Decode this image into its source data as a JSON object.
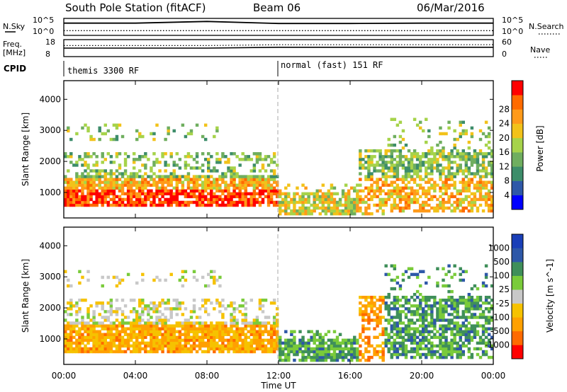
{
  "header": {
    "station": "South Pole Station (fitACF)",
    "beam": "Beam 06",
    "date": "06/Mar/2016"
  },
  "sidebar_labels": {
    "nsky": "N.Sky",
    "freq_line1": "Freq.",
    "freq_line2": "[MHz]",
    "cpid": "CPID",
    "nsearch": "N.Search",
    "nave": "Nave"
  },
  "cpid_segments": [
    {
      "label": "themis 3300 RF",
      "start_hour": 0
    },
    {
      "label": "normal (fast) 151 RF",
      "start_hour": 12
    }
  ],
  "colors": {
    "power": [
      "#0000ff",
      "#2e58a8",
      "#3d8d6a",
      "#6fae5f",
      "#a6d34a",
      "#f2c21a",
      "#ff9a1a",
      "#ff6a00",
      "#ff0000"
    ],
    "velocity": [
      "#ff0000",
      "#ff6a00",
      "#ffa000",
      "#f6c200",
      "#c8c8c8",
      "#7acb3a",
      "#3f8f5a",
      "#2e58a8",
      "#1a3fb8"
    ]
  },
  "chart_data": [
    {
      "type": "line",
      "panel": "noise",
      "left_label": "N.Sky",
      "right_label": "N.Search",
      "left_ticks": [
        "10^5",
        "10^0"
      ],
      "right_ticks": [
        "10^5",
        "10^0"
      ],
      "ylim_log10": [
        0,
        5
      ],
      "x": [
        0,
        4,
        8,
        12,
        16,
        20,
        24
      ],
      "series": [
        {
          "name": "N.Sky",
          "values_log10": [
            3.6,
            3.6,
            4.1,
            3.5,
            3.5,
            3.6,
            3.6
          ]
        },
        {
          "name": "N.Search",
          "values_log10": [
            1.4,
            1.4,
            1.4,
            1.4,
            1.4,
            1.4,
            1.4
          ]
        }
      ]
    },
    {
      "type": "line",
      "panel": "frequency",
      "left_label": "Freq. [MHz]",
      "right_label": "Nave",
      "left_ticks": [
        "18",
        "8"
      ],
      "right_ticks": [
        "60",
        "0"
      ],
      "ylim_left": [
        8,
        18
      ],
      "ylim_right": [
        0,
        60
      ],
      "x": [
        0,
        4,
        8,
        12,
        16,
        20,
        24
      ],
      "series": [
        {
          "name": "Freq.",
          "values": [
            13,
            13,
            13,
            13.5,
            13.5,
            13.5,
            13.5
          ]
        },
        {
          "name": "Nave",
          "values": [
            39,
            39,
            39,
            42,
            42,
            42,
            42
          ]
        }
      ]
    },
    {
      "type": "heatmap",
      "panel": "power",
      "ylabel": "Slant Range [km]",
      "yticks": [
        1000,
        2000,
        3000,
        4000
      ],
      "ylim": [
        180,
        4600
      ],
      "xlim": [
        0,
        24
      ],
      "colorbar_label": "Power [dB]",
      "colorbar_ticks": [
        "4",
        "8",
        "12",
        "16",
        "20",
        "24",
        "28"
      ],
      "colorbar_range": [
        0,
        30
      ]
    },
    {
      "type": "heatmap",
      "panel": "velocity",
      "ylabel": "Slant Range [km]",
      "yticks": [
        1000,
        2000,
        3000,
        4000
      ],
      "ylim": [
        180,
        4600
      ],
      "xlim": [
        0,
        24
      ],
      "xlabel": "Time UT",
      "xticks": [
        "00:00",
        "04:00",
        "08:00",
        "12:00",
        "16:00",
        "20:00",
        "00:00"
      ],
      "colorbar_label": "Velocity [m s^-1]",
      "colorbar_ticks": [
        "-1000",
        "-500",
        "-100",
        "-25",
        "25",
        "100",
        "500",
        "1000"
      ]
    }
  ]
}
